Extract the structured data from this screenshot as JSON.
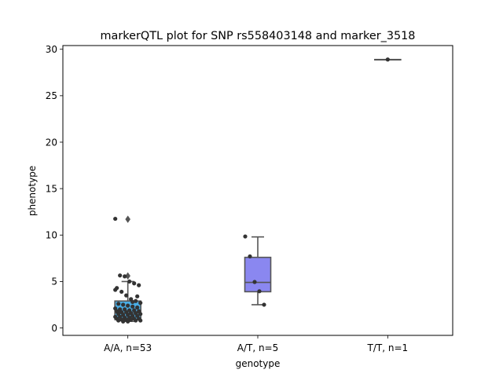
{
  "chart_data": {
    "type": "box",
    "title": "markerQTL plot for SNP rs558403148 and marker_3518",
    "xlabel": "genotype",
    "ylabel": "phenotype",
    "ylim": [
      -0.8,
      30.4
    ],
    "yticks": [
      0,
      5,
      10,
      15,
      20,
      25,
      30
    ],
    "ytick_labels": [
      "0",
      "5",
      "10",
      "15",
      "20",
      "25",
      "30"
    ],
    "categories": [
      "A/A, n=53",
      "A/T, n=5",
      "T/T, n=1"
    ],
    "colors": [
      "#4aaee6",
      "#8a87f0",
      "#c8e05c"
    ],
    "edge_color": "#555555",
    "point_color": "#333333",
    "boxes": [
      {
        "q1": 0.9,
        "median": 1.6,
        "q3": 2.9,
        "whisker_low": 0.7,
        "whisker_high": 5.0,
        "fliers": [
          5.6,
          11.7
        ]
      },
      {
        "q1": 3.9,
        "median": 4.9,
        "q3": 7.6,
        "whisker_low": 2.5,
        "whisker_high": 9.8,
        "fliers": []
      },
      {
        "q1": 28.9,
        "median": 28.9,
        "q3": 28.9,
        "whisker_low": 28.9,
        "whisker_high": 28.9,
        "fliers": []
      }
    ],
    "points": [
      [
        11.75,
        5.65,
        5.55,
        5.0,
        4.8,
        4.6,
        4.3,
        3.9,
        3.5,
        3.1,
        2.9,
        2.7,
        2.6,
        2.5,
        2.4,
        2.3,
        2.2,
        2.1,
        2.0,
        2.0,
        1.9,
        1.9,
        1.8,
        1.8,
        1.7,
        1.7,
        1.6,
        1.6,
        1.5,
        1.5,
        1.4,
        1.4,
        1.3,
        1.3,
        1.2,
        1.2,
        1.1,
        1.1,
        1.0,
        1.0,
        1.0,
        0.9,
        0.9,
        0.9,
        0.8,
        0.8,
        0.8,
        0.7,
        0.7,
        2.8,
        3.4,
        4.1,
        1.8
      ],
      [
        9.85,
        7.7,
        4.95,
        3.95,
        2.5
      ],
      [
        28.9
      ]
    ]
  }
}
